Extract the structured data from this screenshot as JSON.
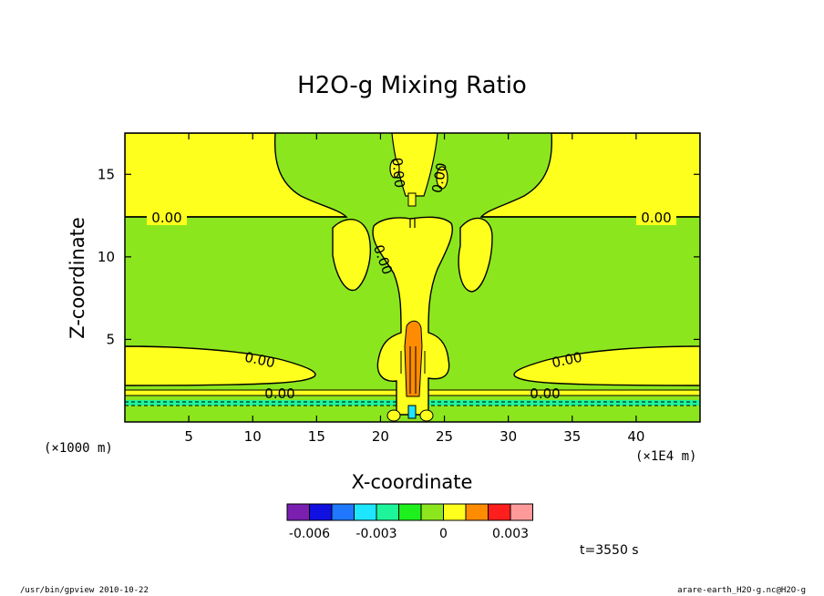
{
  "chart_data": {
    "type": "heatmap",
    "title": "H2O-g Mixing Ratio",
    "xlabel": "X-coordinate",
    "ylabel": "Z-coordinate",
    "x_unit": "(×1E4 m)",
    "y_unit": "(×1000 m)",
    "xlim": [
      0,
      45
    ],
    "ylim": [
      0,
      17.5
    ],
    "xticks": [
      5,
      10,
      15,
      20,
      25,
      30,
      35,
      40
    ],
    "yticks": [
      5,
      10,
      15
    ],
    "contour_labels": [
      "0.00",
      "0.00",
      "0.00",
      "0.00",
      "0.00",
      "0.00",
      "0.00",
      "0.00",
      "0.00"
    ],
    "colorbar": {
      "colors": [
        "#7a1fb0",
        "#1010e0",
        "#1f78ff",
        "#1ee6ff",
        "#1ef59a",
        "#1ef01e",
        "#8ce61e",
        "#ffff1e",
        "#ff8c00",
        "#ff1e1e",
        "#ff9a9a"
      ],
      "tick_labels": [
        "-0.006",
        "-0.003",
        "0",
        "0.003"
      ],
      "tick_values": [
        -0.006,
        -0.003,
        0,
        0.003
      ]
    },
    "time_label": "t=3550 s"
  },
  "footer": {
    "left": "/usr/bin/gpview  2010-10-22",
    "right": "arare-earth_H2O-g.nc@H2O-g"
  },
  "colors": {
    "background_field": "#8ce61e",
    "positive_field": "#ffff1e",
    "core": "#ff8c00",
    "negative": "#1ef59a"
  }
}
